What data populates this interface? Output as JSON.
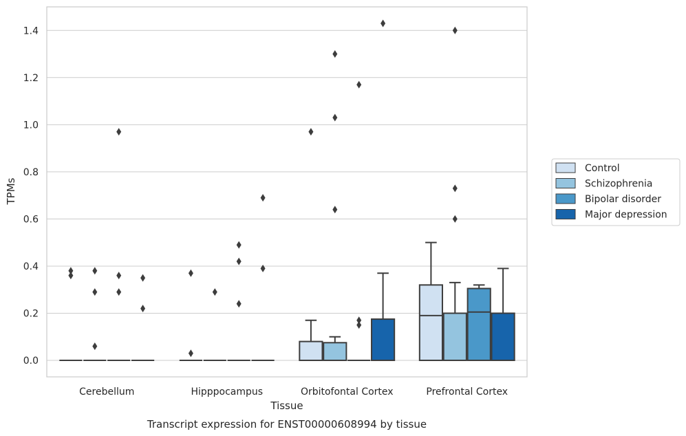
{
  "chart_data": {
    "type": "box",
    "xlabel": "Tissue",
    "ylabel": "TPMs",
    "caption": "Transcript expression for ENST00000608994 by tissue",
    "ylim": [
      -0.07,
      1.5
    ],
    "yticks": [
      0.0,
      0.2,
      0.4,
      0.6,
      0.8,
      1.0,
      1.2,
      1.4
    ],
    "ytick_labels": [
      "0.0",
      "0.2",
      "0.4",
      "0.6",
      "0.8",
      "1.0",
      "1.2",
      "1.4"
    ],
    "grid": "horizontal",
    "legend_position": "right",
    "categories": [
      "Cerebellum",
      "Hipppocampus",
      "Orbitofontal Cortex",
      "Prefrontal Cortex"
    ],
    "series": [
      {
        "name": "Control",
        "color": "#d0e1f2",
        "boxes": [
          {
            "q1": 0,
            "median": 0,
            "q3": 0,
            "whisker_low": 0,
            "whisker_high": 0,
            "outliers": [
              0.38,
              0.36
            ]
          },
          {
            "q1": 0,
            "median": 0,
            "q3": 0,
            "whisker_low": 0,
            "whisker_high": 0,
            "outliers": [
              0.37,
              0.03
            ]
          },
          {
            "q1": 0,
            "median": 0,
            "q3": 0.08,
            "whisker_low": 0,
            "whisker_high": 0.17,
            "outliers": [
              0.97
            ]
          },
          {
            "q1": 0,
            "median": 0.19,
            "q3": 0.32,
            "whisker_low": 0,
            "whisker_high": 0.5,
            "outliers": []
          }
        ]
      },
      {
        "name": "Schizophrenia",
        "color": "#94c4df",
        "boxes": [
          {
            "q1": 0,
            "median": 0,
            "q3": 0,
            "whisker_low": 0,
            "whisker_high": 0,
            "outliers": [
              0.38,
              0.29,
              0.06
            ]
          },
          {
            "q1": 0,
            "median": 0,
            "q3": 0,
            "whisker_low": 0,
            "whisker_high": 0,
            "outliers": [
              0.29
            ]
          },
          {
            "q1": 0,
            "median": 0,
            "q3": 0.075,
            "whisker_low": 0,
            "whisker_high": 0.1,
            "outliers": [
              1.3,
              1.03,
              0.64
            ]
          },
          {
            "q1": 0,
            "median": 0.2,
            "q3": 0.2,
            "whisker_low": 0,
            "whisker_high": 0.33,
            "outliers": [
              1.4,
              0.73,
              0.6
            ]
          }
        ]
      },
      {
        "name": "Bipolar disorder",
        "color": "#4a98c9",
        "boxes": [
          {
            "q1": 0,
            "median": 0,
            "q3": 0,
            "whisker_low": 0,
            "whisker_high": 0,
            "outliers": [
              0.97,
              0.36,
              0.29
            ]
          },
          {
            "q1": 0,
            "median": 0,
            "q3": 0,
            "whisker_low": 0,
            "whisker_high": 0,
            "outliers": [
              0.49,
              0.42,
              0.24
            ]
          },
          {
            "q1": 0,
            "median": 0,
            "q3": 0,
            "whisker_low": 0,
            "whisker_high": 0,
            "outliers": [
              1.17,
              0.17,
              0.15
            ]
          },
          {
            "q1": 0,
            "median": 0.205,
            "q3": 0.305,
            "whisker_low": 0,
            "whisker_high": 0.32,
            "outliers": []
          }
        ]
      },
      {
        "name": "Major depression",
        "color": "#1764ab",
        "boxes": [
          {
            "q1": 0,
            "median": 0,
            "q3": 0,
            "whisker_low": 0,
            "whisker_high": 0,
            "outliers": [
              0.35,
              0.22
            ]
          },
          {
            "q1": 0,
            "median": 0,
            "q3": 0,
            "whisker_low": 0,
            "whisker_high": 0,
            "outliers": [
              0.69,
              0.39
            ]
          },
          {
            "q1": 0,
            "median": 0,
            "q3": 0.175,
            "whisker_low": 0,
            "whisker_high": 0.37,
            "outliers": [
              1.43
            ]
          },
          {
            "q1": 0,
            "median": 0.2,
            "q3": 0.2,
            "whisker_low": 0,
            "whisker_high": 0.39,
            "outliers": []
          }
        ]
      }
    ]
  }
}
